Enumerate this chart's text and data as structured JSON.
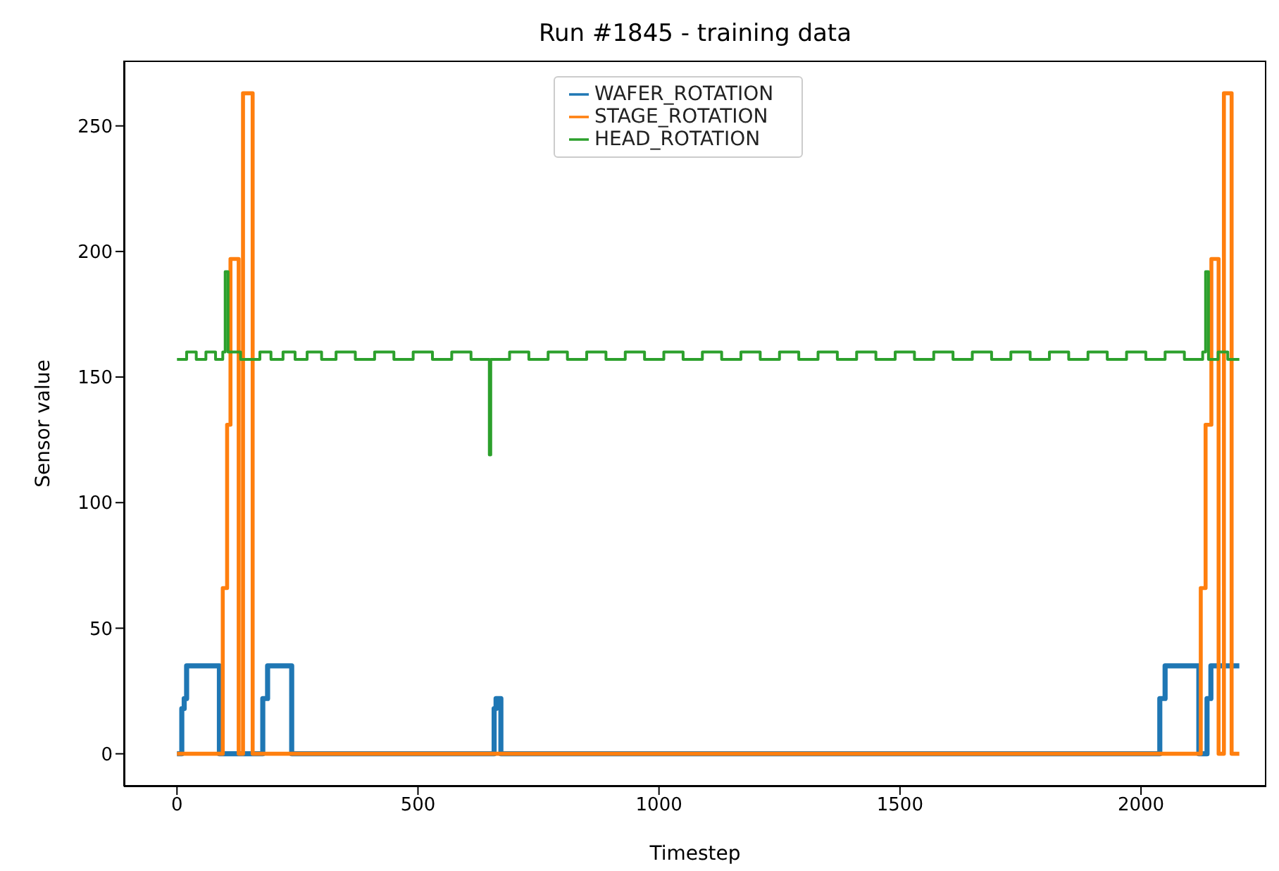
{
  "chart_data": {
    "type": "step",
    "title": "Run #1845 - training data",
    "xlabel": "Timestep",
    "ylabel": "Sensor value",
    "xlim": [
      -110,
      2260
    ],
    "xticks": [
      0,
      500,
      1000,
      1500,
      2000
    ],
    "ylim": [
      -13,
      276
    ],
    "yticks": [
      0,
      50,
      100,
      150,
      200,
      250
    ],
    "grid": false,
    "legend": "top",
    "marker": "none",
    "line_style": "solid",
    "series": [
      {
        "name": "WAFER_ROTATION",
        "color": "#1f77b4",
        "x": [
          0,
          10,
          15,
          20,
          88,
          178,
          188,
          238,
          658,
          662,
          672,
          2039,
          2050,
          2120,
          2137,
          2145,
          2204
        ],
        "values": [
          0,
          18,
          22,
          35,
          0,
          22,
          35,
          0,
          18,
          22,
          0,
          22,
          35,
          0,
          22,
          35,
          35
        ]
      },
      {
        "name": "STAGE_ROTATION",
        "color": "#ff7f0e",
        "x": [
          0,
          95,
          104,
          111,
          128,
          137,
          157,
          2124,
          2134,
          2146,
          2161,
          2172,
          2188,
          2204
        ],
        "values": [
          0,
          66,
          131,
          197,
          0,
          263,
          0,
          66,
          131,
          197,
          0,
          263,
          0,
          0
        ]
      },
      {
        "name": "HEAD_ROTATION",
        "color": "#2ca02c",
        "x": [
          0,
          20,
          40,
          60,
          80,
          95,
          100,
          106,
          132,
          172,
          195,
          220,
          245,
          270,
          300,
          330,
          370,
          410,
          450,
          490,
          530,
          570,
          610,
          645,
          648,
          651,
          690,
          730,
          770,
          810,
          850,
          890,
          930,
          970,
          1010,
          1050,
          1090,
          1130,
          1170,
          1210,
          1250,
          1290,
          1330,
          1370,
          1410,
          1450,
          1490,
          1530,
          1570,
          1610,
          1650,
          1690,
          1730,
          1770,
          1810,
          1850,
          1890,
          1930,
          1970,
          2010,
          2050,
          2090,
          2128,
          2134,
          2140,
          2160,
          2180,
          2204
        ],
        "values": [
          157,
          160,
          157,
          160,
          157,
          160,
          192,
          160,
          157,
          160,
          157,
          160,
          157,
          160,
          157,
          160,
          157,
          160,
          157,
          160,
          157,
          160,
          157,
          157,
          119,
          157,
          160,
          157,
          160,
          157,
          160,
          157,
          160,
          157,
          160,
          157,
          160,
          157,
          160,
          157,
          160,
          157,
          160,
          157,
          160,
          157,
          160,
          157,
          160,
          157,
          160,
          157,
          160,
          157,
          160,
          157,
          160,
          157,
          160,
          157,
          160,
          157,
          160,
          192,
          157,
          160,
          157,
          157
        ]
      }
    ]
  }
}
